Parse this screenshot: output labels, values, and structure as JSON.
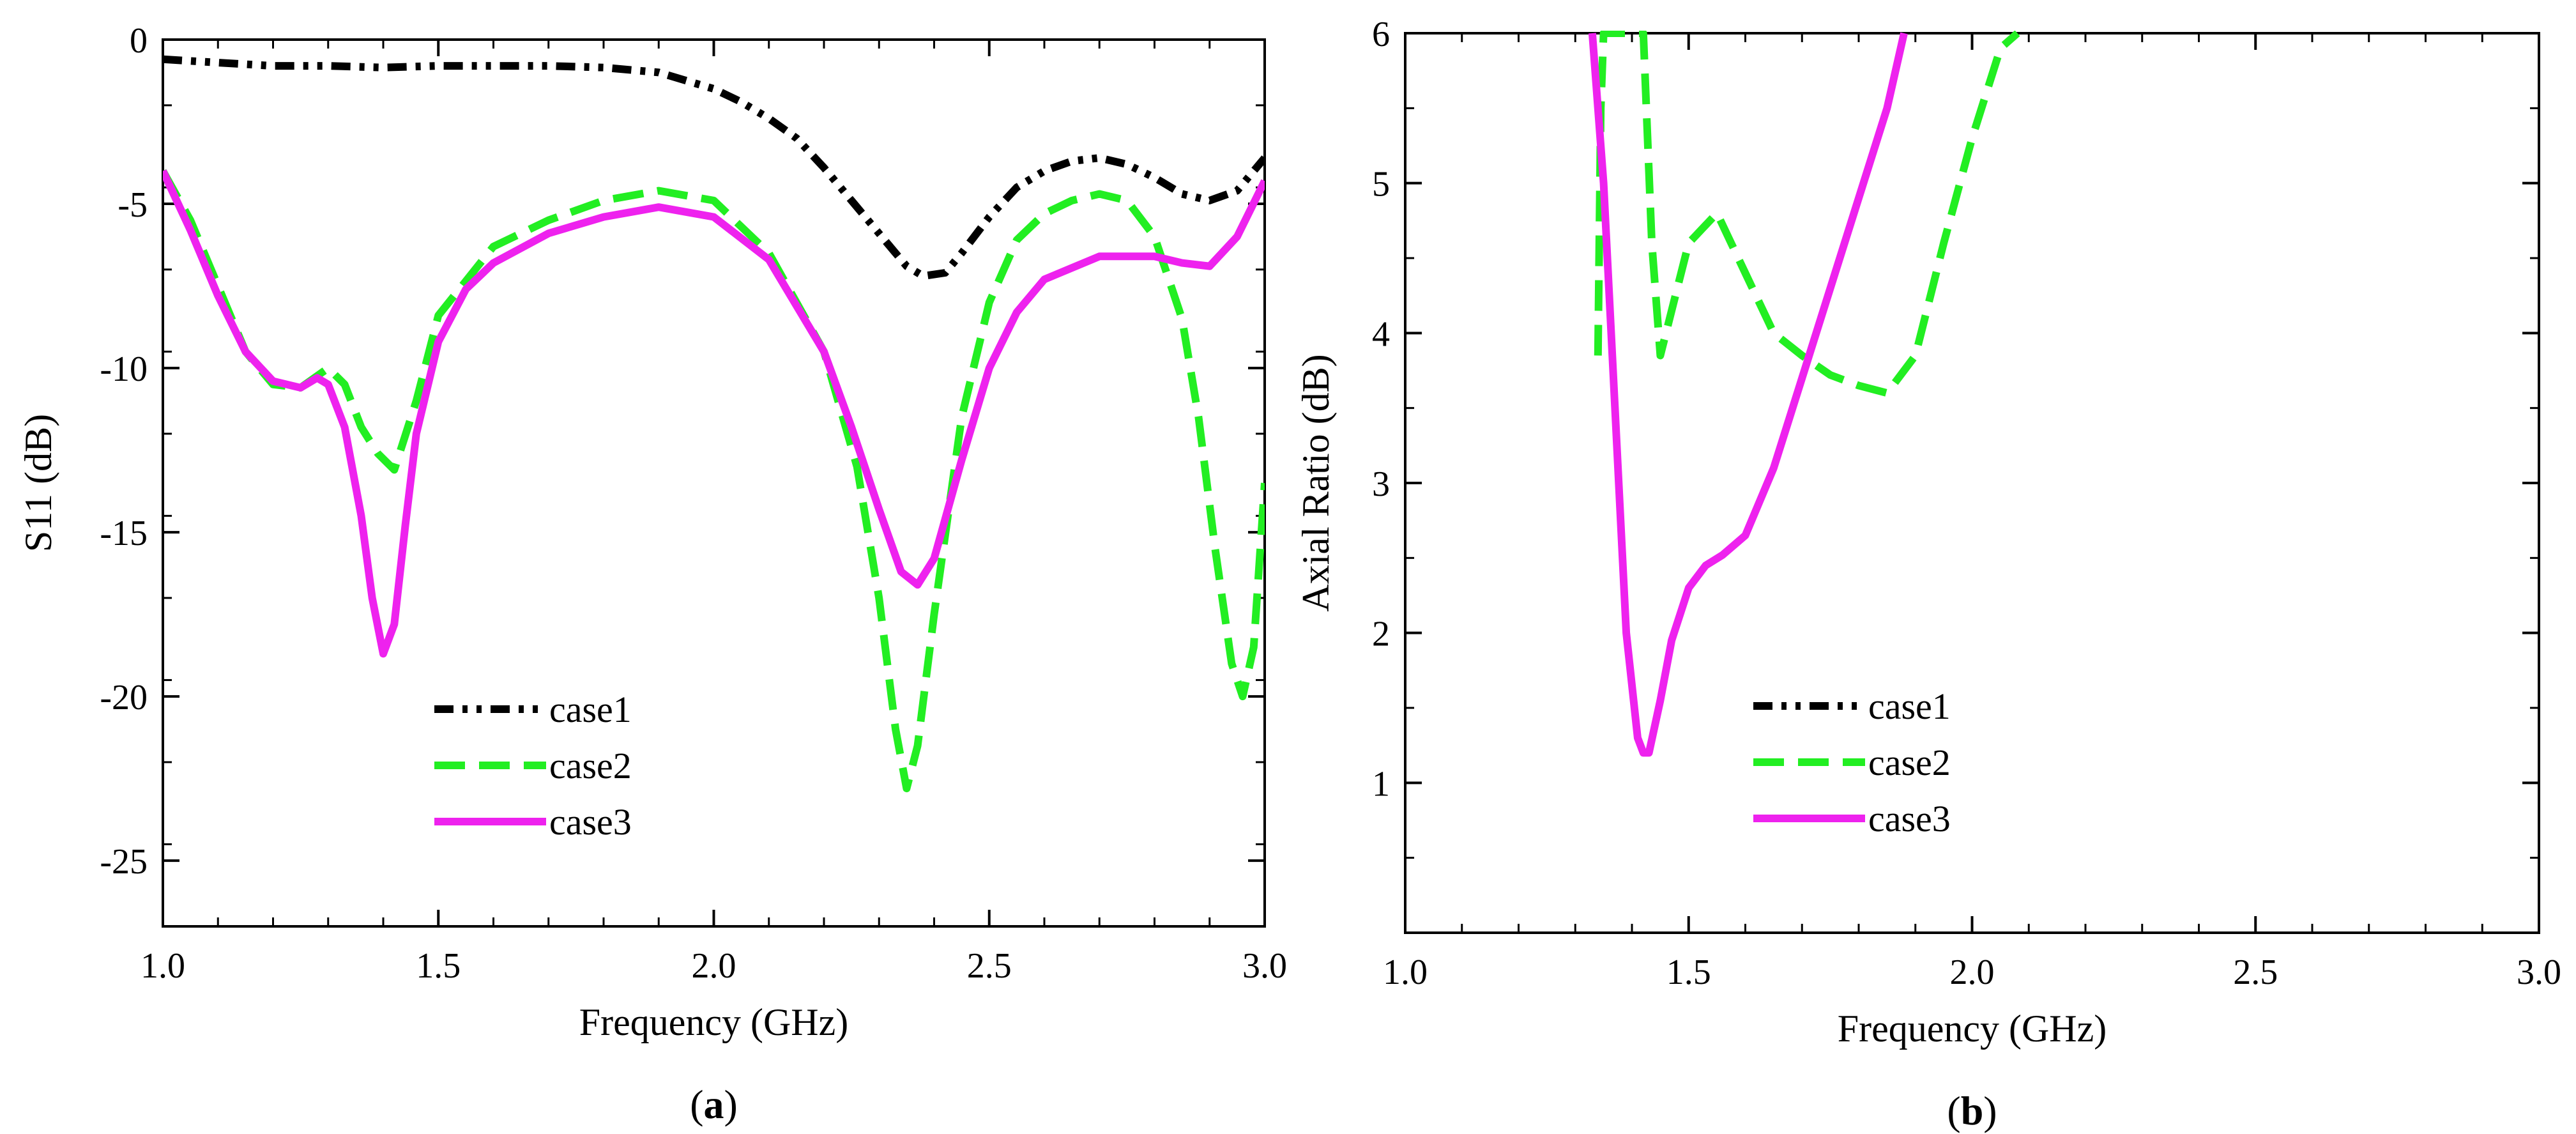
{
  "chart_data": [
    {
      "type": "line",
      "panel_label": "a",
      "title": "",
      "xlabel": "Frequency (GHz)",
      "ylabel": "S11 (dB)",
      "xlim": [
        1.0,
        3.0
      ],
      "ylim": [
        -27,
        0
      ],
      "xticks": [
        1.0,
        1.5,
        2.0,
        2.5,
        3.0
      ],
      "xtick_labels": [
        "1.0",
        "1.5",
        "2.0",
        "2.5",
        "3.0"
      ],
      "yticks": [
        0,
        -5,
        -10,
        -15,
        -20,
        -25
      ],
      "ytick_labels": [
        "0",
        "-5",
        "-10",
        "-15",
        "-20",
        "-25"
      ],
      "grid": false,
      "legend_position": "lower-left",
      "series": [
        {
          "name": "case1",
          "color": "#000000",
          "dash": "dashdotdot",
          "x": [
            1.0,
            1.1,
            1.2,
            1.3,
            1.4,
            1.5,
            1.6,
            1.7,
            1.8,
            1.9,
            2.0,
            2.05,
            2.1,
            2.15,
            2.2,
            2.25,
            2.3,
            2.35,
            2.38,
            2.42,
            2.45,
            2.5,
            2.55,
            2.6,
            2.65,
            2.7,
            2.75,
            2.8,
            2.85,
            2.9,
            2.95,
            3.0
          ],
          "y": [
            -0.6,
            -0.7,
            -0.8,
            -0.8,
            -0.85,
            -0.8,
            -0.8,
            -0.8,
            -0.85,
            -1.0,
            -1.5,
            -1.9,
            -2.4,
            -3.0,
            -3.9,
            -4.9,
            -5.9,
            -6.9,
            -7.2,
            -7.1,
            -6.5,
            -5.4,
            -4.5,
            -4.0,
            -3.7,
            -3.6,
            -3.8,
            -4.2,
            -4.7,
            -4.9,
            -4.6,
            -3.6
          ]
        },
        {
          "name": "case2",
          "color": "#22ee22",
          "dash": "dashed",
          "x": [
            1.0,
            1.05,
            1.1,
            1.15,
            1.2,
            1.25,
            1.3,
            1.33,
            1.36,
            1.39,
            1.42,
            1.46,
            1.5,
            1.6,
            1.7,
            1.8,
            1.9,
            2.0,
            2.1,
            2.2,
            2.26,
            2.3,
            2.33,
            2.35,
            2.37,
            2.4,
            2.45,
            2.5,
            2.55,
            2.6,
            2.65,
            2.7,
            2.75,
            2.8,
            2.85,
            2.88,
            2.91,
            2.94,
            2.96,
            2.98,
            3.0
          ],
          "y": [
            -4.0,
            -5.5,
            -7.5,
            -9.5,
            -10.5,
            -10.6,
            -10.0,
            -10.5,
            -11.8,
            -12.6,
            -13.1,
            -11.0,
            -8.4,
            -6.3,
            -5.5,
            -4.9,
            -4.6,
            -4.9,
            -6.5,
            -9.5,
            -13.0,
            -17.0,
            -21.0,
            -22.8,
            -21.5,
            -17.5,
            -11.5,
            -8.0,
            -6.1,
            -5.3,
            -4.9,
            -4.7,
            -4.9,
            -6.0,
            -8.5,
            -11.5,
            -15.5,
            -19.0,
            -20.0,
            -18.5,
            -13.5
          ]
        },
        {
          "name": "case3",
          "color": "#ee22ee",
          "dash": "solid",
          "x": [
            1.0,
            1.05,
            1.1,
            1.15,
            1.2,
            1.25,
            1.28,
            1.3,
            1.33,
            1.36,
            1.38,
            1.4,
            1.42,
            1.44,
            1.46,
            1.5,
            1.55,
            1.6,
            1.7,
            1.8,
            1.9,
            2.0,
            2.1,
            2.2,
            2.25,
            2.3,
            2.34,
            2.37,
            2.4,
            2.45,
            2.5,
            2.55,
            2.6,
            2.7,
            2.8,
            2.85,
            2.9,
            2.95,
            3.0
          ],
          "y": [
            -4.0,
            -5.8,
            -7.8,
            -9.5,
            -10.4,
            -10.6,
            -10.3,
            -10.5,
            -11.8,
            -14.5,
            -17.0,
            -18.7,
            -17.8,
            -14.8,
            -12.0,
            -9.2,
            -7.6,
            -6.8,
            -5.9,
            -5.4,
            -5.1,
            -5.4,
            -6.7,
            -9.5,
            -11.8,
            -14.3,
            -16.2,
            -16.6,
            -15.8,
            -12.8,
            -10.0,
            -8.3,
            -7.3,
            -6.6,
            -6.6,
            -6.8,
            -6.9,
            -6.0,
            -4.3
          ]
        }
      ]
    },
    {
      "type": "line",
      "panel_label": "b",
      "title": "",
      "xlabel": "Frequency (GHz)",
      "ylabel": "Axial Ratio (dB)",
      "xlim": [
        1.0,
        3.0
      ],
      "ylim": [
        0,
        6
      ],
      "xticks": [
        1.0,
        1.5,
        2.0,
        2.5,
        3.0
      ],
      "xtick_labels": [
        "1.0",
        "1.5",
        "2.0",
        "2.5",
        "3.0"
      ],
      "yticks": [
        1,
        2,
        3,
        4,
        5,
        6
      ],
      "ytick_labels": [
        "1",
        "2",
        "3",
        "4",
        "5",
        "6"
      ],
      "grid": false,
      "legend_position": "lower-left",
      "series": [
        {
          "name": "case1",
          "color": "#000000",
          "dash": "dashdotdot",
          "x": [],
          "y": []
        },
        {
          "name": "case2",
          "color": "#22ee22",
          "dash": "dashed",
          "x": [
            1.34,
            1.345,
            1.35,
            1.36,
            1.38,
            1.4,
            1.42,
            1.435,
            1.45,
            1.48,
            1.5,
            1.55,
            1.6,
            1.65,
            1.7,
            1.75,
            1.8,
            1.85,
            1.9,
            1.95,
            2.0,
            2.05,
            2.08
          ],
          "y": [
            3.85,
            5.5,
            6.0,
            6.0,
            6.0,
            6.0,
            6.0,
            4.6,
            3.85,
            4.3,
            4.6,
            4.8,
            4.4,
            4.0,
            3.85,
            3.72,
            3.65,
            3.6,
            3.85,
            4.6,
            5.3,
            5.9,
            6.0
          ]
        },
        {
          "name": "case3",
          "color": "#ee22ee",
          "dash": "solid",
          "x": [
            1.33,
            1.35,
            1.37,
            1.39,
            1.41,
            1.42,
            1.43,
            1.45,
            1.47,
            1.5,
            1.53,
            1.56,
            1.6,
            1.65,
            1.7,
            1.75,
            1.8,
            1.85,
            1.88
          ],
          "y": [
            6.0,
            5.0,
            3.5,
            2.0,
            1.3,
            1.2,
            1.2,
            1.55,
            1.95,
            2.3,
            2.45,
            2.52,
            2.65,
            3.1,
            3.7,
            4.3,
            4.9,
            5.5,
            6.0
          ]
        }
      ]
    }
  ]
}
